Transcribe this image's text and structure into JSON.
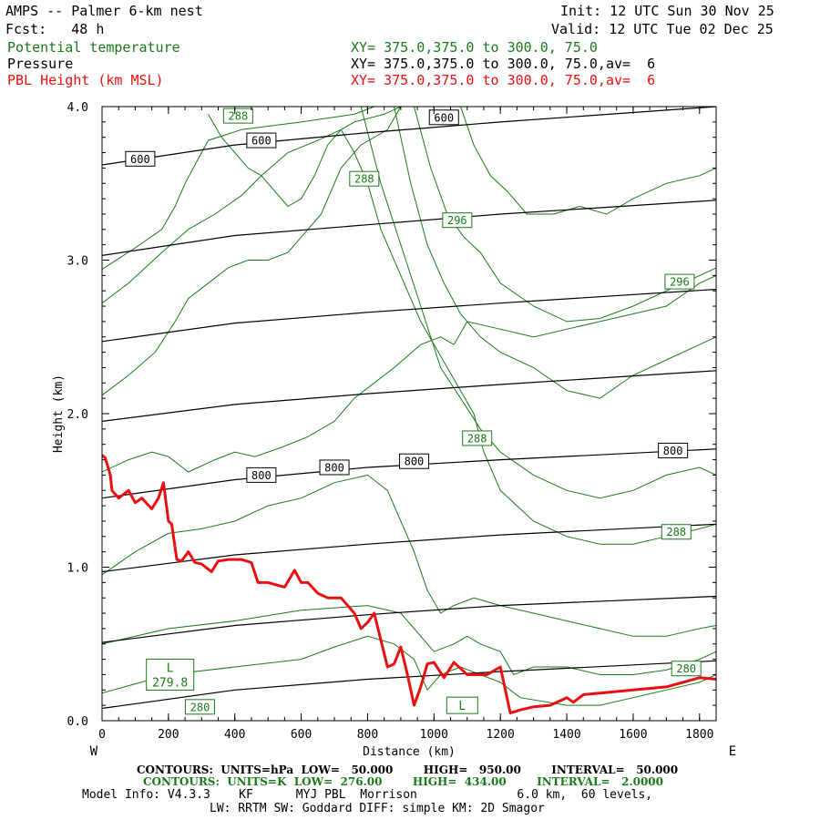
{
  "header": {
    "title": "AMPS -- Palmer 6-km nest",
    "forecast": "Fcst:   48 h",
    "init": "Init: 12 UTC Sun 30 Nov 25",
    "valid": "Valid: 12 UTC Tue 02 Dec 25",
    "field1_name": "Potential temperature",
    "field1_xy": "XY= 375.0,375.0 to 300.0, 75.0",
    "field2_name": "Pressure",
    "field2_xy": "XY= 375.0,375.0 to 300.0, 75.0,av=  6",
    "field3_name": "PBL Height (km MSL)",
    "field3_xy": "XY= 375.0,375.0 to 300.0, 75.0,av=  6"
  },
  "colors": {
    "theta": "#1a7a1a",
    "pressure": "#000000",
    "pbl": "#e81010"
  },
  "chart_data": {
    "type": "line",
    "title": "AMPS -- Palmer 6-km nest cross section",
    "xlabel": "Distance (km)",
    "ylabel": "Height (km)",
    "xlim": [
      0,
      1850
    ],
    "ylim": [
      0,
      4
    ],
    "x_ticks": [
      0,
      200,
      400,
      600,
      800,
      1000,
      1200,
      1400,
      1600,
      1800
    ],
    "x_tick_labels": [
      "0",
      "200",
      "400",
      "600",
      "800",
      "1000",
      "1200",
      "1400",
      "1600",
      "1800"
    ],
    "y_ticks": [
      0,
      1,
      2,
      3,
      4
    ],
    "y_tick_labels": [
      "0.0",
      "1.0",
      "2.0",
      "3.0",
      "4.0"
    ],
    "left_edge_label": "W",
    "right_edge_label": "E",
    "pbl_height": {
      "name": "PBL Height (km MSL)",
      "x": [
        0,
        10,
        25,
        30,
        50,
        80,
        100,
        120,
        150,
        170,
        185,
        200,
        210,
        225,
        240,
        260,
        280,
        300,
        330,
        350,
        380,
        420,
        450,
        470,
        500,
        550,
        580,
        600,
        620,
        650,
        680,
        720,
        760,
        780,
        800,
        820,
        860,
        880,
        900,
        920,
        940,
        960,
        980,
        1000,
        1030,
        1060,
        1080,
        1100,
        1130,
        1160,
        1200,
        1230,
        1260,
        1300,
        1350,
        1400,
        1420,
        1450,
        1500,
        1600,
        1700,
        1800,
        1850
      ],
      "y": [
        1.73,
        1.71,
        1.6,
        1.5,
        1.45,
        1.5,
        1.42,
        1.45,
        1.38,
        1.45,
        1.55,
        1.3,
        1.28,
        1.05,
        1.04,
        1.1,
        1.03,
        1.02,
        0.97,
        1.04,
        1.05,
        1.05,
        1.03,
        0.9,
        0.9,
        0.87,
        0.98,
        0.9,
        0.9,
        0.83,
        0.8,
        0.8,
        0.7,
        0.6,
        0.64,
        0.7,
        0.35,
        0.37,
        0.48,
        0.3,
        0.1,
        0.22,
        0.37,
        0.38,
        0.28,
        0.38,
        0.34,
        0.3,
        0.3,
        0.3,
        0.35,
        0.05,
        0.07,
        0.09,
        0.1,
        0.15,
        0.12,
        0.17,
        0.18,
        0.2,
        0.22,
        0.28,
        0.27
      ]
    },
    "pressure_contours": [
      {
        "value": 950,
        "x": [
          0,
          400,
          800,
          1200,
          1850
        ],
        "y": [
          0.08,
          0.2,
          0.27,
          0.32,
          0.39
        ]
      },
      {
        "value": 900,
        "x": [
          0,
          400,
          800,
          1200,
          1850
        ],
        "y": [
          0.51,
          0.62,
          0.69,
          0.75,
          0.81
        ]
      },
      {
        "value": 850,
        "x": [
          0,
          400,
          800,
          1200,
          1850
        ],
        "y": [
          0.97,
          1.08,
          1.15,
          1.21,
          1.28
        ]
      },
      {
        "value": 800,
        "x": [
          0,
          400,
          800,
          1200,
          1850
        ],
        "y": [
          1.45,
          1.57,
          1.65,
          1.7,
          1.77
        ]
      },
      {
        "value": 750,
        "x": [
          0,
          400,
          800,
          1200,
          1850
        ],
        "y": [
          1.95,
          2.06,
          2.13,
          2.19,
          2.28
        ]
      },
      {
        "value": 700,
        "x": [
          0,
          400,
          800,
          1200,
          1850
        ],
        "y": [
          2.47,
          2.59,
          2.66,
          2.72,
          2.81
        ]
      },
      {
        "value": 650,
        "x": [
          0,
          400,
          800,
          1200,
          1850
        ],
        "y": [
          3.03,
          3.16,
          3.23,
          3.3,
          3.39
        ]
      },
      {
        "value": 600,
        "x": [
          0,
          400,
          800,
          1200,
          1850
        ],
        "y": [
          3.62,
          3.75,
          3.83,
          3.9,
          4.0
        ]
      }
    ],
    "pressure_labels": [
      {
        "text": "600",
        "x": 115,
        "y": 3.66
      },
      {
        "text": "600",
        "x": 480,
        "y": 3.78
      },
      {
        "text": "600",
        "x": 1030,
        "y": 3.93
      },
      {
        "text": "800",
        "x": 480,
        "y": 1.6
      },
      {
        "text": "800",
        "x": 700,
        "y": 1.65
      },
      {
        "text": "800",
        "x": 940,
        "y": 1.69
      },
      {
        "text": "800",
        "x": 1720,
        "y": 1.76
      }
    ],
    "theta_labels": [
      {
        "text": "288",
        "x": 410,
        "y": 3.94
      },
      {
        "text": "288",
        "x": 790,
        "y": 3.53
      },
      {
        "text": "296",
        "x": 1070,
        "y": 3.26
      },
      {
        "text": "296",
        "x": 1740,
        "y": 2.86
      },
      {
        "text": "288",
        "x": 1130,
        "y": 1.84
      },
      {
        "text": "288",
        "x": 1730,
        "y": 1.23
      },
      {
        "text": "280",
        "x": 1760,
        "y": 0.34
      },
      {
        "text": "280",
        "x": 295,
        "y": 0.09
      }
    ],
    "theta_extrema": [
      {
        "kind": "L",
        "value": "279.8",
        "x": 205,
        "y": 0.3
      },
      {
        "kind": "L",
        "value": "",
        "x": 1085,
        "y": 0.1
      }
    ],
    "theta_contours": [
      {
        "value": 278,
        "x": [
          0,
          100,
          180,
          220,
          250,
          280,
          300,
          320,
          420,
          600,
          760,
          820,
          850
        ],
        "y": [
          2.94,
          3.08,
          3.2,
          3.35,
          3.5,
          3.62,
          3.7,
          3.78,
          3.85,
          3.9,
          3.95,
          4.0,
          4.0
        ]
      },
      {
        "value": 280,
        "x": [
          0,
          80,
          180,
          260,
          340,
          420,
          480,
          560,
          650,
          720,
          760,
          850,
          900
        ],
        "y": [
          2.72,
          2.85,
          3.05,
          3.2,
          3.3,
          3.42,
          3.55,
          3.7,
          3.78,
          3.85,
          3.9,
          3.95,
          4.0
        ]
      },
      {
        "value": 282,
        "x": [
          0,
          80,
          160,
          220,
          260,
          320,
          380,
          440,
          500,
          560,
          600,
          660,
          720,
          780,
          860,
          900
        ],
        "y": [
          2.12,
          2.25,
          2.4,
          2.6,
          2.75,
          2.85,
          2.95,
          3.0,
          3.0,
          3.05,
          3.15,
          3.3,
          3.6,
          3.75,
          3.85,
          4.0
        ]
      },
      {
        "value": 284,
        "x": [
          0,
          80,
          150,
          200,
          260,
          340,
          400,
          460,
          540,
          620,
          700,
          760,
          820,
          880,
          960,
          1020,
          1060,
          1100,
          1200,
          1300,
          1400,
          1500,
          1600,
          1700,
          1800,
          1850
        ],
        "y": [
          1.62,
          1.7,
          1.75,
          1.72,
          1.62,
          1.7,
          1.75,
          1.72,
          1.78,
          1.85,
          1.95,
          2.1,
          2.2,
          2.3,
          2.45,
          2.5,
          2.45,
          2.6,
          2.55,
          2.5,
          2.55,
          2.6,
          2.65,
          2.7,
          2.85,
          2.9
        ]
      },
      {
        "value": 286,
        "x": [
          0,
          100,
          200,
          300,
          400,
          500,
          600,
          700,
          800,
          860,
          900,
          940,
          980,
          1020,
          1060,
          1120,
          1200,
          1300,
          1400,
          1500,
          1600,
          1700,
          1800,
          1850
        ],
        "y": [
          0.95,
          1.1,
          1.22,
          1.25,
          1.3,
          1.4,
          1.45,
          1.55,
          1.6,
          1.5,
          1.3,
          1.1,
          0.85,
          0.7,
          0.75,
          0.8,
          0.75,
          0.7,
          0.65,
          0.6,
          0.55,
          0.55,
          0.6,
          0.62
        ]
      },
      {
        "value": 288,
        "x": [
          320,
          360,
          400,
          440,
          480,
          520,
          560,
          600,
          640,
          680,
          720,
          760,
          800,
          840,
          900,
          960,
          1040,
          1120,
          1150,
          1200,
          1300,
          1400,
          1500,
          1600,
          1700,
          1800,
          1850
        ],
        "y": [
          3.95,
          3.8,
          3.7,
          3.6,
          3.55,
          3.45,
          3.35,
          3.4,
          3.55,
          3.75,
          3.85,
          3.7,
          3.5,
          3.2,
          2.9,
          2.6,
          2.3,
          2.0,
          1.75,
          1.5,
          1.3,
          1.2,
          1.15,
          1.15,
          1.2,
          1.25,
          1.28
        ]
      },
      {
        "value": 292,
        "x": [
          780,
          840,
          900,
          960,
          1020,
          1080,
          1140,
          1200,
          1300,
          1400,
          1500,
          1600,
          1700,
          1800,
          1850
        ],
        "y": [
          4.0,
          3.5,
          3.1,
          2.7,
          2.3,
          2.1,
          1.9,
          1.75,
          1.6,
          1.5,
          1.45,
          1.5,
          1.6,
          1.65,
          1.6
        ]
      },
      {
        "value": 296,
        "x": [
          880,
          930,
          980,
          1030,
          1080,
          1140,
          1200,
          1300,
          1400,
          1500,
          1600,
          1700,
          1800,
          1850
        ],
        "y": [
          4.0,
          3.5,
          3.1,
          2.85,
          2.65,
          2.5,
          2.4,
          2.3,
          2.15,
          2.1,
          2.25,
          2.35,
          2.45,
          2.5
        ]
      },
      {
        "value": 300,
        "x": [
          940,
          990,
          1040,
          1090,
          1140,
          1200,
          1300,
          1400,
          1500,
          1600,
          1700,
          1800,
          1850
        ],
        "y": [
          4.0,
          3.6,
          3.3,
          3.15,
          3.05,
          2.85,
          2.7,
          2.6,
          2.62,
          2.7,
          2.8,
          2.9,
          2.95
        ]
      },
      {
        "value": 304,
        "x": [
          1080,
          1120,
          1170,
          1220,
          1280,
          1360,
          1440,
          1520,
          1600,
          1700,
          1800,
          1850
        ],
        "y": [
          4.0,
          3.75,
          3.55,
          3.45,
          3.3,
          3.3,
          3.35,
          3.3,
          3.4,
          3.5,
          3.55,
          3.6
        ]
      },
      {
        "value": 284,
        "x": [
          0,
          200,
          400,
          600,
          800,
          900,
          960,
          1000,
          1060,
          1100,
          1140,
          1200,
          1240,
          1300,
          1400,
          1500,
          1600,
          1700,
          1800,
          1850
        ],
        "y": [
          0.5,
          0.6,
          0.65,
          0.72,
          0.75,
          0.7,
          0.55,
          0.45,
          0.5,
          0.55,
          0.5,
          0.45,
          0.3,
          0.35,
          0.35,
          0.3,
          0.3,
          0.33,
          0.4,
          0.45
        ]
      },
      {
        "value": 282,
        "x": [
          0,
          200,
          400,
          600,
          700,
          800,
          880,
          940,
          980,
          1020,
          1080,
          1140,
          1200,
          1260,
          1400,
          1500,
          1600,
          1700,
          1800,
          1850
        ],
        "y": [
          0.18,
          0.3,
          0.35,
          0.4,
          0.48,
          0.55,
          0.5,
          0.4,
          0.2,
          0.3,
          0.35,
          0.3,
          0.25,
          0.15,
          0.1,
          0.1,
          0.15,
          0.2,
          0.25,
          0.3
        ]
      }
    ]
  },
  "footer": {
    "hpa_line": "CONTOURS:  UNITS=hPa  LOW=   50.000        HIGH=   950.00        INTERVAL=   50.000",
    "k_line": "CONTOURS:  UNITS=K  LOW=  276.00        HIGH=  434.00        INTERVAL=   2.0000",
    "model_info": "Model Info: V4.3.3    KF      MYJ PBL  Morrison              6.0 km,  60 levels,",
    "physics_info": "LW: RRTM SW: Goddard DIFF: simple KM: 2D Smagor"
  }
}
